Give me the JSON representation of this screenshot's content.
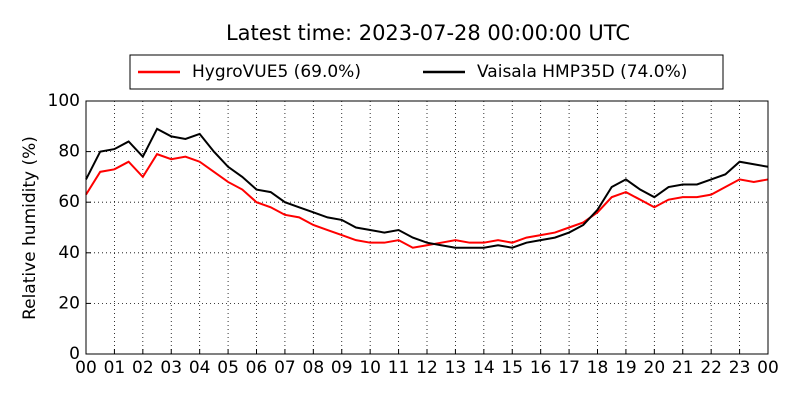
{
  "chart_data": {
    "type": "line",
    "title": "Latest time: 2023-07-28 00:00:00 UTC",
    "y_label": "Relative humidity (%)",
    "x": [
      0,
      0.5,
      1,
      1.5,
      2,
      2.5,
      3,
      3.5,
      4,
      4.5,
      5,
      5.5,
      6,
      6.5,
      7,
      7.5,
      8,
      8.5,
      9,
      9.5,
      10,
      10.5,
      11,
      11.5,
      12,
      12.5,
      13,
      13.5,
      14,
      14.5,
      15,
      15.5,
      16,
      16.5,
      17,
      17.5,
      18,
      18.5,
      19,
      19.5,
      20,
      20.5,
      21,
      21.5,
      22,
      22.5,
      23,
      23.5,
      24
    ],
    "series": [
      {
        "name": "HygroVUE5 (69.0%)",
        "color": "#ff0000",
        "values": [
          63,
          72,
          73,
          76,
          70,
          79,
          77,
          78,
          76,
          72,
          68,
          65,
          60,
          58,
          55,
          54,
          51,
          49,
          47,
          45,
          44,
          44,
          45,
          42,
          43,
          44,
          45,
          44,
          44,
          45,
          44,
          46,
          47,
          48,
          50,
          52,
          56,
          62,
          64,
          61,
          58,
          61,
          62,
          62,
          63,
          66,
          69,
          68,
          69
        ]
      },
      {
        "name": "Vaisala HMP35D (74.0%)",
        "color": "#000000",
        "values": [
          69,
          80,
          81,
          84,
          78,
          89,
          86,
          85,
          87,
          80,
          74,
          70,
          65,
          64,
          60,
          58,
          56,
          54,
          53,
          50,
          49,
          48,
          49,
          46,
          44,
          43,
          42,
          42,
          42,
          43,
          42,
          44,
          45,
          46,
          48,
          51,
          57,
          66,
          69,
          65,
          62,
          66,
          67,
          67,
          69,
          71,
          76,
          75,
          74
        ]
      }
    ],
    "xlim": [
      0,
      24
    ],
    "xticks": [
      {
        "value": 0,
        "label": "00"
      },
      {
        "value": 1,
        "label": "01"
      },
      {
        "value": 2,
        "label": "02"
      },
      {
        "value": 3,
        "label": "03"
      },
      {
        "value": 4,
        "label": "04"
      },
      {
        "value": 5,
        "label": "05"
      },
      {
        "value": 6,
        "label": "06"
      },
      {
        "value": 7,
        "label": "07"
      },
      {
        "value": 8,
        "label": "08"
      },
      {
        "value": 9,
        "label": "09"
      },
      {
        "value": 10,
        "label": "10"
      },
      {
        "value": 11,
        "label": "11"
      },
      {
        "value": 12,
        "label": "12"
      },
      {
        "value": 13,
        "label": "13"
      },
      {
        "value": 14,
        "label": "14"
      },
      {
        "value": 15,
        "label": "15"
      },
      {
        "value": 16,
        "label": "16"
      },
      {
        "value": 17,
        "label": "17"
      },
      {
        "value": 18,
        "label": "18"
      },
      {
        "value": 19,
        "label": "19"
      },
      {
        "value": 20,
        "label": "20"
      },
      {
        "value": 21,
        "label": "21"
      },
      {
        "value": 22,
        "label": "22"
      },
      {
        "value": 23,
        "label": "23"
      },
      {
        "value": 24,
        "label": "00"
      }
    ],
    "ylim": [
      0,
      100
    ],
    "yticks": [
      0,
      20,
      40,
      60,
      80,
      100
    ],
    "grid": true,
    "legend": "top"
  }
}
